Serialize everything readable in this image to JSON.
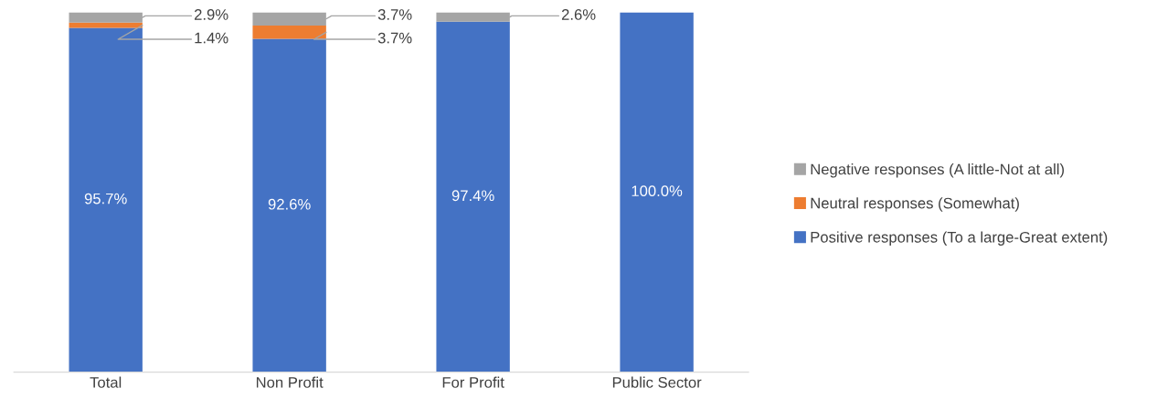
{
  "chart_data": {
    "type": "bar",
    "stacked": true,
    "categories": [
      "Total",
      "Non Profit",
      "For Profit",
      "Public Sector"
    ],
    "series": [
      {
        "name": "Positive responses (To a large-Great extent)",
        "color": "#4472c4",
        "values": [
          95.7,
          92.6,
          97.4,
          100.0
        ],
        "value_labels": [
          "95.7%",
          "92.6%",
          "97.4%",
          "100.0%"
        ]
      },
      {
        "name": "Neutral responses (Somewhat)",
        "color": "#ed7d31",
        "values": [
          1.4,
          3.7,
          0,
          0
        ],
        "value_labels": [
          "1.4%",
          "3.7%",
          null,
          null
        ]
      },
      {
        "name": "Negative responses (A little-Not at all)",
        "color": "#a5a5a5",
        "values": [
          2.9,
          3.7,
          2.6,
          0
        ],
        "value_labels": [
          "2.9%",
          "3.7%",
          "2.6%",
          null
        ]
      }
    ],
    "legend": "right",
    "tick_labels": "x"
  }
}
